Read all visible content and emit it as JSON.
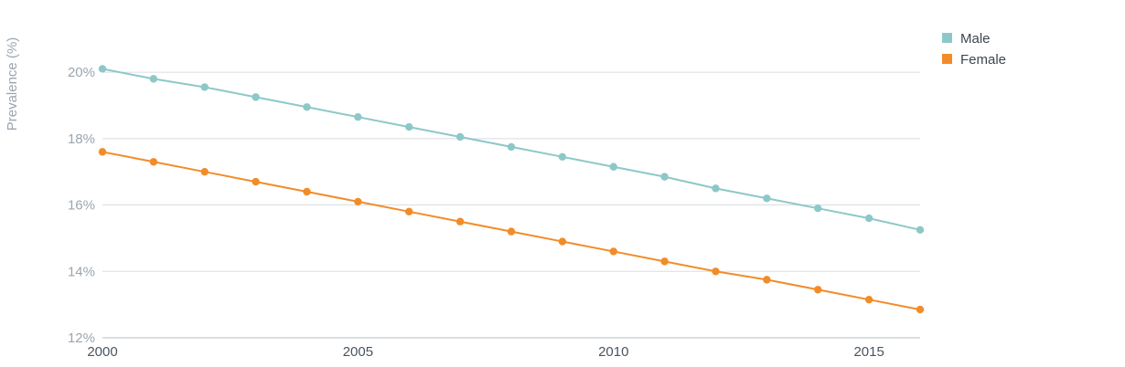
{
  "chart_data": {
    "type": "line",
    "title": "",
    "xlabel": "",
    "ylabel": "Prevalence (%)",
    "x": [
      2000,
      2001,
      2002,
      2003,
      2004,
      2005,
      2006,
      2007,
      2008,
      2009,
      2010,
      2011,
      2012,
      2013,
      2014,
      2015,
      2016
    ],
    "xticks": [
      2000,
      2005,
      2010,
      2015
    ],
    "xtick_labels": [
      "2000",
      "2005",
      "2010",
      "2015"
    ],
    "xlim": [
      2000,
      2016
    ],
    "ylim": [
      12,
      20.8
    ],
    "yticks": [
      12,
      14,
      16,
      18,
      20
    ],
    "ytick_labels": [
      "12%",
      "14%",
      "16%",
      "18%",
      "20%"
    ],
    "grid": true,
    "legend_position": "top-right",
    "series": [
      {
        "name": "Male",
        "color": "#8dc8c8",
        "values": [
          20.1,
          19.8,
          19.55,
          19.25,
          18.95,
          18.65,
          18.35,
          18.05,
          17.75,
          17.45,
          17.15,
          16.85,
          16.5,
          16.2,
          15.9,
          15.6,
          15.25
        ]
      },
      {
        "name": "Female",
        "color": "#f28c28",
        "values": [
          17.6,
          17.3,
          17.0,
          16.7,
          16.4,
          16.1,
          15.8,
          15.5,
          15.2,
          14.9,
          14.6,
          14.3,
          14.0,
          13.75,
          13.45,
          13.15,
          12.85
        ]
      }
    ]
  }
}
